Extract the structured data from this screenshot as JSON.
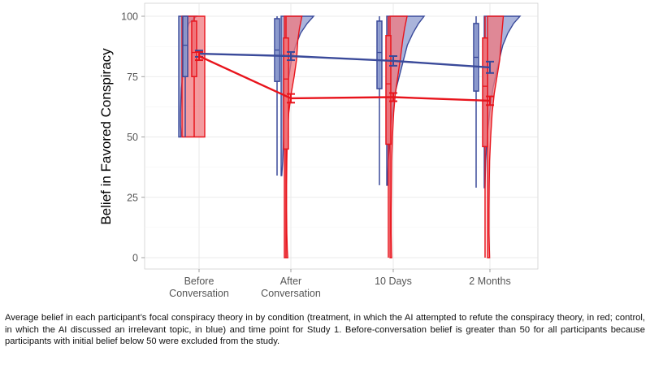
{
  "chart_data": {
    "type": "raincloud",
    "ylabel": "Belief in Favored Conspiracy",
    "xlabel": "",
    "ylim": [
      0,
      100
    ],
    "yticks": [
      0,
      25,
      50,
      75,
      100
    ],
    "grid": true,
    "categories": [
      "Before\nConversation",
      "After\nConversation",
      "10 Days",
      "2 Months"
    ],
    "series": [
      {
        "name": "control",
        "color": "#3a4a9a",
        "fill": "#8d9bcf",
        "means": [
          84.5,
          83.5,
          81.5,
          78.8
        ],
        "ci": [
          [
            83.2,
            85.8
          ],
          [
            81.8,
            85.2
          ],
          [
            79.5,
            83.5
          ],
          [
            76.5,
            81.2
          ]
        ],
        "boxes": [
          {
            "min": 50,
            "q1": 75,
            "median": 88,
            "q3": 100,
            "max": 100
          },
          {
            "min": 34,
            "q1": 73,
            "median": 86,
            "q3": 99,
            "max": 100
          },
          {
            "min": 30,
            "q1": 70,
            "median": 85,
            "q3": 98,
            "max": 100
          },
          {
            "min": 29,
            "q1": 69,
            "median": 83,
            "q3": 97,
            "max": 100
          }
        ]
      },
      {
        "name": "treatment",
        "color": "#e8141c",
        "fill": "#f07a7f",
        "means": [
          83.5,
          66.0,
          66.5,
          65.0
        ],
        "ci": [
          [
            81.8,
            85.2
          ],
          [
            64.2,
            67.8
          ],
          [
            64.8,
            68.2
          ],
          [
            63.2,
            66.8
          ]
        ],
        "boxes": [
          {
            "min": 50,
            "q1": 75,
            "median": 85,
            "q3": 98,
            "max": 100
          },
          {
            "min": 0,
            "q1": 45,
            "median": 74,
            "q3": 91,
            "max": 100
          },
          {
            "min": 0,
            "q1": 47,
            "median": 72,
            "q3": 92,
            "max": 100
          },
          {
            "min": 0,
            "q1": 46,
            "median": 71,
            "q3": 91,
            "max": 100
          }
        ]
      }
    ],
    "densities": [
      {
        "series": "control",
        "category": 0,
        "points": [
          [
            100,
            1
          ],
          [
            97,
            0.55
          ],
          [
            92,
            0.4
          ],
          [
            85,
            0.3
          ],
          [
            80,
            0.25
          ],
          [
            75,
            0.22
          ],
          [
            70,
            0.15
          ],
          [
            65,
            0.12
          ],
          [
            60,
            0.1
          ],
          [
            55,
            0.1
          ],
          [
            52,
            0.12
          ],
          [
            50,
            0.12
          ]
        ]
      },
      {
        "series": "treatment",
        "category": 0,
        "points": [
          [
            100,
            1
          ],
          [
            97,
            1
          ],
          [
            92,
            1
          ],
          [
            85,
            1
          ],
          [
            80,
            1
          ],
          [
            75,
            1
          ],
          [
            70,
            1
          ],
          [
            65,
            1
          ],
          [
            60,
            1
          ],
          [
            55,
            1
          ],
          [
            52,
            1
          ],
          [
            50,
            1
          ]
        ]
      },
      {
        "series": "control",
        "category": 1,
        "points": [
          [
            100,
            1
          ],
          [
            97,
            0.8
          ],
          [
            93,
            0.6
          ],
          [
            88,
            0.45
          ],
          [
            82,
            0.32
          ],
          [
            76,
            0.25
          ],
          [
            70,
            0.18
          ],
          [
            60,
            0.12
          ],
          [
            50,
            0.08
          ],
          [
            40,
            0.05
          ],
          [
            34,
            0.02
          ]
        ]
      },
      {
        "series": "treatment",
        "category": 1,
        "points": [
          [
            100,
            0.72
          ],
          [
            95,
            0.62
          ],
          [
            90,
            0.55
          ],
          [
            82,
            0.5
          ],
          [
            75,
            0.4
          ],
          [
            68,
            0.28
          ],
          [
            60,
            0.18
          ],
          [
            50,
            0.12
          ],
          [
            40,
            0.1
          ],
          [
            30,
            0.09
          ],
          [
            20,
            0.09
          ],
          [
            10,
            0.1
          ],
          [
            3,
            0.12
          ],
          [
            0,
            0.14
          ]
        ]
      },
      {
        "series": "control",
        "category": 2,
        "points": [
          [
            100,
            1
          ],
          [
            97,
            0.85
          ],
          [
            93,
            0.7
          ],
          [
            88,
            0.55
          ],
          [
            82,
            0.45
          ],
          [
            76,
            0.35
          ],
          [
            70,
            0.25
          ],
          [
            60,
            0.15
          ],
          [
            50,
            0.08
          ],
          [
            40,
            0.04
          ],
          [
            30,
            0.02
          ]
        ]
      },
      {
        "series": "treatment",
        "category": 2,
        "points": [
          [
            100,
            0.7
          ],
          [
            95,
            0.6
          ],
          [
            90,
            0.52
          ],
          [
            82,
            0.42
          ],
          [
            75,
            0.32
          ],
          [
            68,
            0.22
          ],
          [
            60,
            0.15
          ],
          [
            50,
            0.1
          ],
          [
            40,
            0.07
          ],
          [
            30,
            0.06
          ],
          [
            20,
            0.05
          ],
          [
            10,
            0.05
          ],
          [
            3,
            0.06
          ],
          [
            0,
            0.07
          ]
        ]
      },
      {
        "series": "control",
        "category": 3,
        "points": [
          [
            100,
            1
          ],
          [
            97,
            0.82
          ],
          [
            93,
            0.66
          ],
          [
            88,
            0.52
          ],
          [
            82,
            0.42
          ],
          [
            76,
            0.33
          ],
          [
            70,
            0.24
          ],
          [
            60,
            0.15
          ],
          [
            50,
            0.08
          ],
          [
            40,
            0.04
          ],
          [
            29,
            0.02
          ]
        ]
      },
      {
        "series": "treatment",
        "category": 3,
        "points": [
          [
            100,
            0.75
          ],
          [
            95,
            0.7
          ],
          [
            90,
            0.65
          ],
          [
            82,
            0.58
          ],
          [
            75,
            0.45
          ],
          [
            68,
            0.32
          ],
          [
            60,
            0.22
          ],
          [
            50,
            0.15
          ],
          [
            40,
            0.1
          ],
          [
            30,
            0.08
          ],
          [
            20,
            0.07
          ],
          [
            10,
            0.07
          ],
          [
            3,
            0.09
          ],
          [
            0,
            0.1
          ]
        ]
      }
    ]
  },
  "caption": "Average belief in each participant’s focal conspiracy theory in by condition (treatment, in which the AI attempted to refute the conspiracy theory, in red; control, in which the AI discussed an irrelevant topic, in blue) and time point for Study 1. Before-conversation belief is greater than 50 for all participants because participants with initial belief below 50 were excluded from the study."
}
